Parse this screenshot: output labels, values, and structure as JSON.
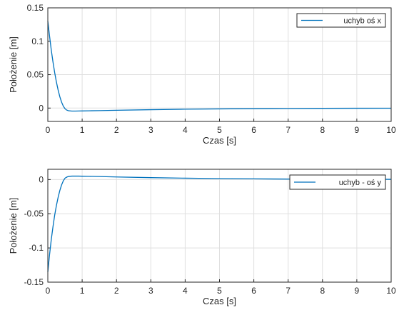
{
  "chart_data": [
    {
      "type": "line",
      "xlabel": "Czas [s]",
      "ylabel": "Położenie [m]",
      "xlim": [
        0,
        10
      ],
      "ylim": [
        -0.02,
        0.15
      ],
      "xticks": [
        "0",
        "1",
        "2",
        "3",
        "4",
        "5",
        "6",
        "7",
        "8",
        "9",
        "10"
      ],
      "yticks": [
        {
          "v": 0.15,
          "label": "0.15"
        },
        {
          "v": 0.1,
          "label": "0.1"
        },
        {
          "v": 0.05,
          "label": "0.05"
        },
        {
          "v": 0,
          "label": "0"
        }
      ],
      "grid": true,
      "legend_position": "top-right",
      "series": [
        {
          "name": "uchyb oś x",
          "color": "#0072BD",
          "x": [
            0,
            0.05,
            0.1,
            0.15,
            0.2,
            0.25,
            0.3,
            0.35,
            0.4,
            0.45,
            0.5,
            0.55,
            0.6,
            0.7,
            0.8,
            0.9,
            1.0,
            1.2,
            1.5,
            2,
            3,
            4,
            5,
            6,
            7,
            8,
            9,
            10
          ],
          "y": [
            0.13,
            0.108,
            0.087,
            0.069,
            0.053,
            0.039,
            0.027,
            0.017,
            0.009,
            0.003,
            -0.001,
            -0.003,
            -0.004,
            -0.0045,
            -0.0045,
            -0.0044,
            -0.0043,
            -0.0041,
            -0.0038,
            -0.0033,
            -0.0024,
            -0.0017,
            -0.0012,
            -0.0008,
            -0.0006,
            -0.0004,
            -0.0003,
            -0.0002
          ]
        }
      ]
    },
    {
      "type": "line",
      "xlabel": "Czas [s]",
      "ylabel": "Położenie [m]",
      "xlim": [
        0,
        10
      ],
      "ylim": [
        -0.15,
        0.015
      ],
      "xticks": [
        "0",
        "1",
        "2",
        "3",
        "4",
        "5",
        "6",
        "7",
        "8",
        "9",
        "10"
      ],
      "yticks": [
        {
          "v": 0,
          "label": "0"
        },
        {
          "v": -0.05,
          "label": "-0.05"
        },
        {
          "v": -0.1,
          "label": "-0.1"
        },
        {
          "v": -0.15,
          "label": "-0.15"
        }
      ],
      "grid": true,
      "legend_position": "top-right",
      "series": [
        {
          "name": "uchyb - oś y",
          "color": "#0072BD",
          "x": [
            0,
            0.05,
            0.1,
            0.15,
            0.2,
            0.25,
            0.3,
            0.35,
            0.4,
            0.45,
            0.5,
            0.55,
            0.6,
            0.7,
            0.8,
            0.9,
            1.0,
            1.2,
            1.5,
            2,
            3,
            4,
            5,
            6,
            7,
            8,
            9,
            10
          ],
          "y": [
            -0.135,
            -0.11,
            -0.088,
            -0.069,
            -0.052,
            -0.038,
            -0.026,
            -0.016,
            -0.008,
            -0.002,
            0.002,
            0.0035,
            0.0045,
            0.005,
            0.005,
            0.005,
            0.0049,
            0.0047,
            0.0044,
            0.0038,
            0.0028,
            0.002,
            0.0014,
            0.001,
            0.0007,
            0.0005,
            0.0004,
            0.0003
          ]
        }
      ]
    }
  ]
}
